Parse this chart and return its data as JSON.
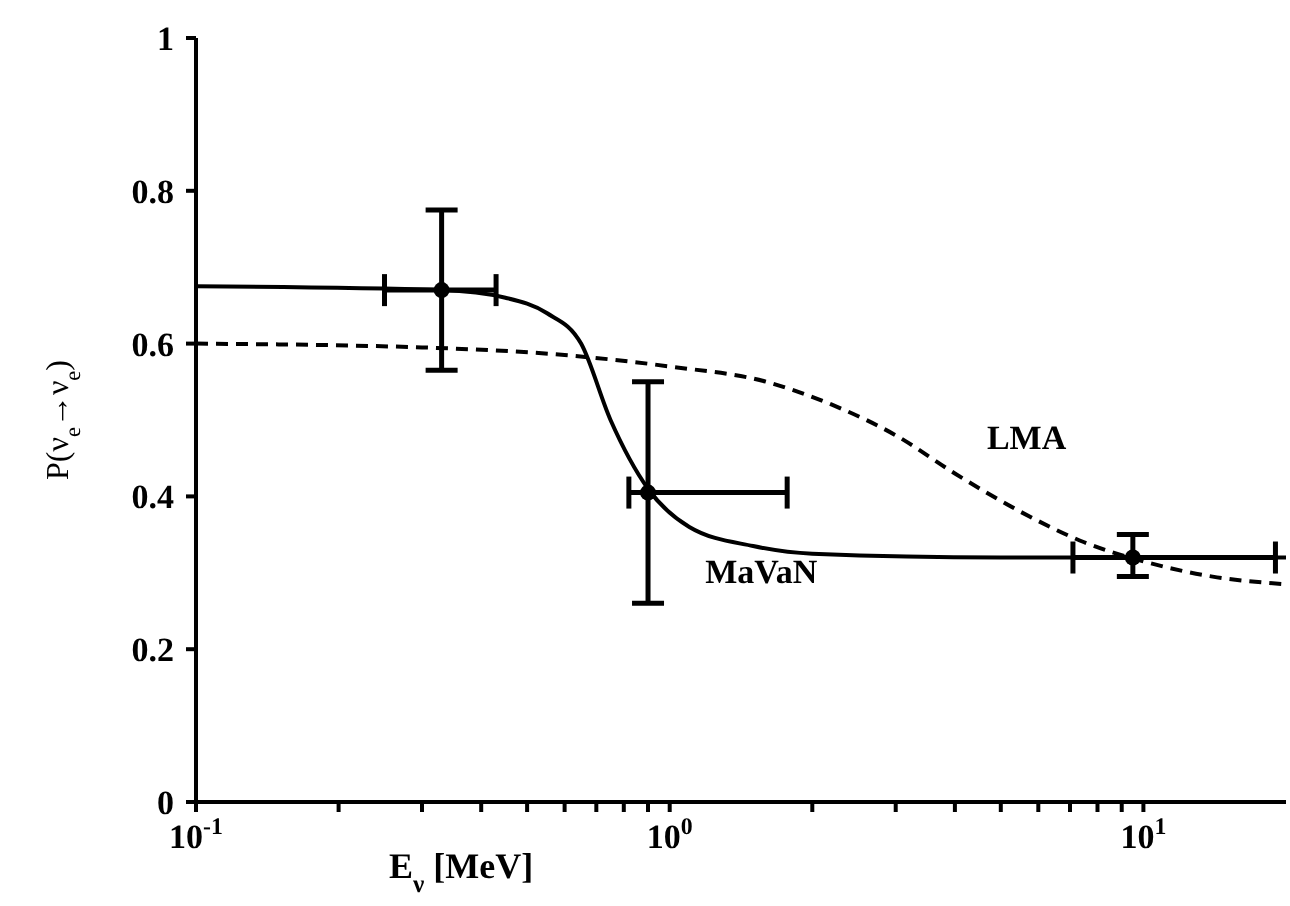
{
  "chart_data": {
    "type": "line",
    "xlabel": "E$_{ν}$ [MeV]",
    "ylabel": "P(ν$_{e}$→ν$_{e}$)",
    "log": "x",
    "xlim": [
      0.1,
      20
    ],
    "ylim": [
      0,
      1
    ],
    "xticks": [
      {
        "value": 0.1,
        "label": "10$^{-1}$"
      },
      {
        "value": 0.2,
        "label": null
      },
      {
        "value": 0.3,
        "label": null
      },
      {
        "value": 0.4,
        "label": null
      },
      {
        "value": 0.5,
        "label": null
      },
      {
        "value": 0.6,
        "label": null
      },
      {
        "value": 0.7,
        "label": null
      },
      {
        "value": 0.8,
        "label": null
      },
      {
        "value": 0.9,
        "label": null
      },
      {
        "value": 1,
        "label": "10$^{0}$"
      },
      {
        "value": 2,
        "label": null
      },
      {
        "value": 3,
        "label": null
      },
      {
        "value": 4,
        "label": null
      },
      {
        "value": 5,
        "label": null
      },
      {
        "value": 6,
        "label": null
      },
      {
        "value": 7,
        "label": null
      },
      {
        "value": 8,
        "label": null
      },
      {
        "value": 9,
        "label": null
      },
      {
        "value": 10,
        "label": "10$^{1}$"
      }
    ],
    "yticks": [
      0,
      0.2,
      0.4,
      0.6,
      0.8,
      1
    ],
    "grid": false,
    "legend": false,
    "series": [
      {
        "name": "MaVaN",
        "color": "#000000",
        "line_style": "solid",
        "marker": "none",
        "x": [
          0.1,
          0.33,
          0.45,
          0.55,
          0.65,
          0.75,
          0.9,
          1.1,
          1.5,
          2,
          5,
          20
        ],
        "values": [
          0.675,
          0.67,
          0.66,
          0.64,
          0.6,
          0.5,
          0.41,
          0.36,
          0.335,
          0.325,
          0.32,
          0.32
        ]
      },
      {
        "name": "LMA",
        "color": "#000000",
        "line_style": "dashed",
        "marker": "none",
        "x": [
          0.1,
          0.3,
          0.6,
          1,
          1.6,
          2.2,
          3,
          4,
          5.5,
          7.5,
          10,
          14,
          20
        ],
        "values": [
          0.6,
          0.595,
          0.585,
          0.57,
          0.55,
          0.52,
          0.48,
          0.43,
          0.38,
          0.34,
          0.315,
          0.295,
          0.285
        ]
      },
      {
        "type": "scatter",
        "color": "#000000",
        "marker": "circle",
        "x": [
          0.33,
          0.9,
          9.5
        ],
        "values": [
          0.67,
          0.405,
          0.32
        ],
        "errors": [
          [
            0.565,
            0.775
          ],
          [
            0.26,
            0.55
          ],
          [
            0.295,
            0.35
          ]
        ],
        "xerrors": [
          [
            0.25,
            0.43
          ],
          [
            0.82,
            1.77
          ],
          [
            7.1,
            19
          ]
        ]
      }
    ]
  }
}
